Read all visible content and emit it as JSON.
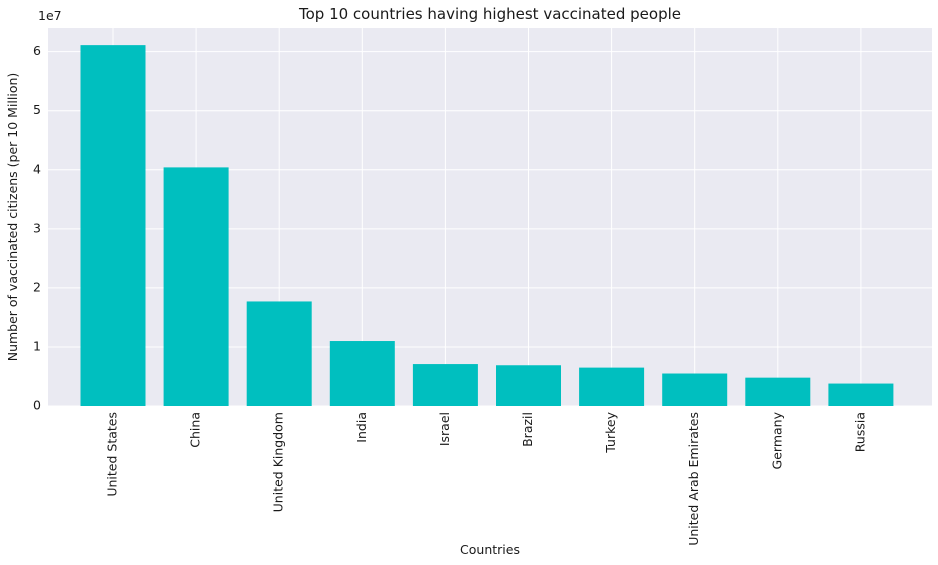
{
  "chart_data": {
    "type": "bar",
    "title": "Top 10 countries having highest vaccinated people",
    "xlabel": "Countries",
    "ylabel": "Number of vaccinated citizens (per 10 Million)",
    "y_offset_label": "1e7",
    "categories": [
      "United States",
      "China",
      "United Kingdom",
      "India",
      "Israel",
      "Brazil",
      "Turkey",
      "United Arab Emirates",
      "Germany",
      "Russia"
    ],
    "values": [
      61100000,
      40400000,
      17700000,
      11000000,
      7100000,
      6900000,
      6500000,
      5500000,
      4800000,
      3800000
    ],
    "yticks": [
      0,
      1,
      2,
      3,
      4,
      5,
      6
    ],
    "ytick_scale": 10000000,
    "ylim": [
      0,
      64000000
    ],
    "grid": true,
    "colors": {
      "bar": "#00bfbf",
      "background": "#eaeaf2",
      "grid": "#ffffff"
    }
  }
}
